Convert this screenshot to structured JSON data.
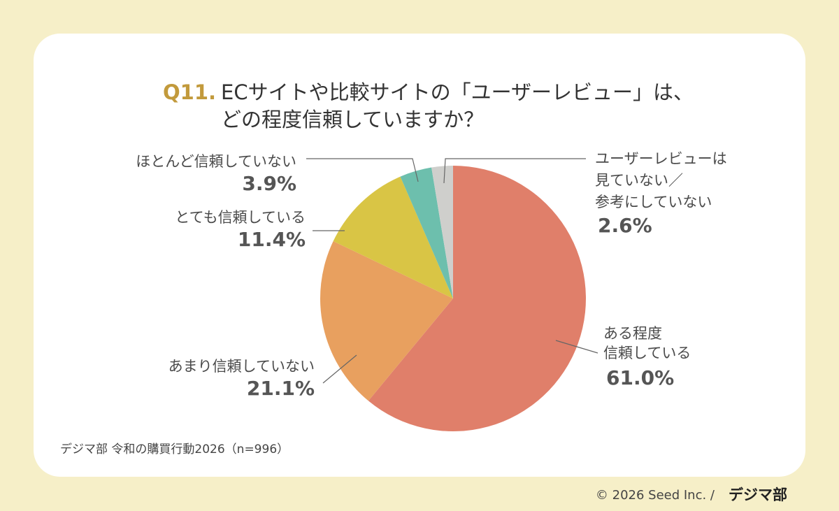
{
  "chart_data": {
    "type": "pie",
    "title_prefix": "Q11.",
    "title": [
      "ECサイトや比較サイトの「ユーザーレビュー」は、",
      "どの程度信頼していますか？"
    ],
    "categories": [
      [
        "ある程度",
        "信頼している"
      ],
      [
        "あまり信頼していない"
      ],
      [
        "とても信頼している"
      ],
      [
        "ほとんど信頼していない"
      ],
      [
        "ユーザーレビューは",
        "見ていない／",
        "参考にしていない"
      ]
    ],
    "values": [
      61.0,
      21.1,
      11.4,
      3.9,
      2.6
    ],
    "value_labels": [
      "61.0%",
      "21.1%",
      "11.4%",
      "3.9%",
      "2.6%"
    ],
    "colors": [
      "#e07f6a",
      "#e8a05f",
      "#d9c545",
      "#6dbfad",
      "#cfcfcc"
    ],
    "source": "デジマ部 令和の購買行動2026（n=996）",
    "copyright": "© 2026 Seed Inc. /",
    "logo": "デジマ部"
  }
}
